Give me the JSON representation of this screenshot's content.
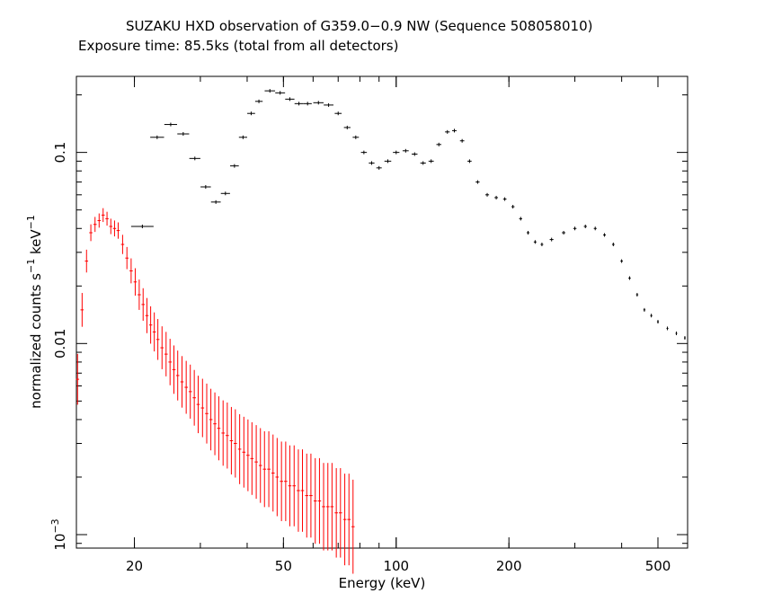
{
  "chart_data": {
    "type": "scatter",
    "title": "SUZAKU HXD observation of G359.0−0.9 NW (Sequence 508058010)",
    "subtitle": "Exposure time: 85.5ks (total from all detectors)",
    "xlabel": "Energy (keV)",
    "ylabel": {
      "base": "normalized counts s",
      "exp1": "−1",
      "mid": " keV",
      "exp2": "−1"
    },
    "xscale": "log",
    "yscale": "log",
    "xlim": [
      14,
      600
    ],
    "ylim": [
      0.00085,
      0.25
    ],
    "xticks": [
      {
        "v": 20,
        "label": "20"
      },
      {
        "v": 50,
        "label": "50"
      },
      {
        "v": 100,
        "label": "100"
      },
      {
        "v": 200,
        "label": "200"
      },
      {
        "v": 500,
        "label": "500"
      }
    ],
    "yticks": [
      {
        "v": 0.1,
        "label": "0.1"
      },
      {
        "v": 0.01,
        "label": "0.01"
      },
      {
        "v": 0.001,
        "label": "10",
        "exp": "−3"
      }
    ],
    "series": [
      {
        "color": "#000000",
        "x": [
          21,
          23,
          25,
          27,
          29,
          31,
          33,
          35,
          37,
          39,
          41,
          43,
          46,
          49,
          52,
          55,
          58,
          62,
          66,
          70,
          74,
          78,
          82,
          86,
          90,
          95,
          100,
          106,
          112,
          118,
          124,
          130,
          137,
          143,
          150,
          157,
          165,
          175,
          185,
          195,
          205,
          215,
          225,
          235,
          245,
          260,
          280,
          300,
          320,
          340,
          360,
          380,
          400,
          420,
          440,
          460,
          480,
          500,
          530,
          560,
          590
        ],
        "y": [
          0.041,
          0.12,
          0.14,
          0.125,
          0.093,
          0.066,
          0.055,
          0.061,
          0.085,
          0.12,
          0.16,
          0.185,
          0.21,
          0.205,
          0.19,
          0.18,
          0.18,
          0.182,
          0.177,
          0.16,
          0.135,
          0.12,
          0.1,
          0.088,
          0.083,
          0.09,
          0.1,
          0.102,
          0.098,
          0.088,
          0.09,
          0.11,
          0.128,
          0.13,
          0.115,
          0.09,
          0.07,
          0.06,
          0.058,
          0.057,
          0.052,
          0.045,
          0.038,
          0.034,
          0.033,
          0.035,
          0.038,
          0.04,
          0.041,
          0.04,
          0.037,
          0.033,
          0.027,
          0.022,
          0.018,
          0.015,
          0.014,
          0.013,
          0.012,
          0.0113,
          0.0107
        ],
        "xerr": [
          1.5,
          1,
          1,
          1,
          1,
          1,
          1,
          1,
          1,
          1,
          1,
          1,
          1.5,
          1.5,
          1.5,
          1.5,
          1.5,
          2,
          2,
          1.5,
          1.5,
          1.5,
          1.5,
          1.5,
          1.5,
          2,
          2,
          2,
          2,
          2,
          2,
          2,
          2,
          2,
          2,
          2,
          2,
          2,
          2,
          2,
          2,
          2,
          2,
          2,
          2,
          3,
          3,
          3,
          3,
          3,
          3,
          3,
          3,
          3,
          3,
          3,
          3,
          3,
          3,
          3,
          3
        ]
      },
      {
        "color": "#ff0000",
        "x": [
          14.1,
          14.5,
          14.9,
          15.3,
          15.7,
          16.1,
          16.5,
          16.9,
          17.3,
          17.7,
          18.1,
          18.6,
          19.1,
          19.6,
          20.1,
          20.6,
          21.1,
          21.6,
          22.1,
          22.6,
          23.1,
          23.7,
          24.3,
          24.9,
          25.5,
          26.1,
          26.8,
          27.5,
          28.2,
          28.9,
          29.6,
          30.4,
          31.2,
          32,
          32.8,
          33.6,
          34.5,
          35.4,
          36.3,
          37.2,
          38.2,
          39.2,
          40.2,
          41.2,
          42.3,
          43.4,
          44.5,
          45.7,
          46.9,
          48.1,
          49.4,
          50.7,
          52,
          53.4,
          54.8,
          56.2,
          57.7,
          59.2,
          60.8,
          62.4,
          64,
          65.7,
          67.4,
          69.2,
          71,
          72.9,
          74.8,
          76.7
        ],
        "y": [
          0.0065,
          0.015,
          0.027,
          0.038,
          0.042,
          0.044,
          0.047,
          0.045,
          0.041,
          0.04,
          0.039,
          0.033,
          0.028,
          0.024,
          0.021,
          0.018,
          0.016,
          0.014,
          0.0125,
          0.0115,
          0.0105,
          0.0095,
          0.0088,
          0.008,
          0.0073,
          0.0068,
          0.0063,
          0.0059,
          0.0056,
          0.0052,
          0.0048,
          0.0046,
          0.0043,
          0.004,
          0.0038,
          0.0036,
          0.0034,
          0.0033,
          0.0031,
          0.003,
          0.0028,
          0.0027,
          0.0026,
          0.0025,
          0.0024,
          0.0023,
          0.0022,
          0.0022,
          0.0021,
          0.002,
          0.0019,
          0.0019,
          0.0018,
          0.0018,
          0.0017,
          0.0017,
          0.0016,
          0.0016,
          0.0015,
          0.0015,
          0.0014,
          0.0014,
          0.0014,
          0.0013,
          0.0013,
          0.0012,
          0.0012,
          0.0011
        ]
      }
    ],
    "grid": false,
    "legend": "none"
  }
}
